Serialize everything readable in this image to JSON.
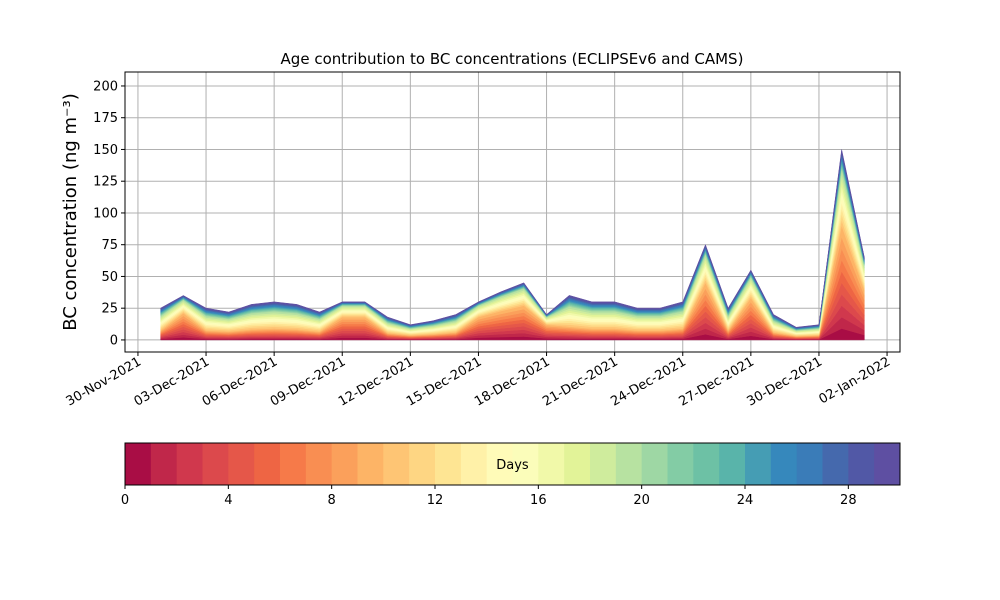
{
  "chart_data": {
    "type": "stacked_area",
    "title": "Age contribution to BC concentrations (ECLIPSEv6 and CAMS)",
    "y_label": "BC concentration (ng m⁻³)",
    "x": [
      "2021-12-01",
      "2021-12-02",
      "2021-12-03",
      "2021-12-04",
      "2021-12-05",
      "2021-12-06",
      "2021-12-07",
      "2021-12-08",
      "2021-12-09",
      "2021-12-10",
      "2021-12-11",
      "2021-12-12",
      "2021-12-13",
      "2021-12-14",
      "2021-12-15",
      "2021-12-16",
      "2021-12-17",
      "2021-12-18",
      "2021-12-19",
      "2021-12-20",
      "2021-12-21",
      "2021-12-22",
      "2021-12-23",
      "2021-12-24",
      "2021-12-25",
      "2021-12-26",
      "2021-12-27",
      "2021-12-28",
      "2021-12-29",
      "2021-12-30",
      "2021-12-31",
      "2022-01-01"
    ],
    "series": [
      {
        "values": [
          0.75,
          2.1,
          0.75,
          0.66,
          0.84,
          0.9,
          0.84,
          0.66,
          1.8,
          1.8,
          0.54,
          0.36,
          0.45,
          0.6,
          1.8,
          2.28,
          2.7,
          1.2,
          1.05,
          0.9,
          0.9,
          0.75,
          0.75,
          0.9,
          4.5,
          0.75,
          3.3,
          0.6,
          0.3,
          0.36,
          9,
          3.9
        ]
      },
      {
        "values": [
          0.75,
          2.1,
          0.75,
          0.66,
          0.84,
          0.9,
          0.84,
          0.66,
          1.8,
          1.8,
          0.54,
          0.36,
          0.45,
          0.6,
          1.8,
          2.28,
          2.7,
          1.2,
          1.05,
          0.9,
          0.9,
          0.75,
          0.75,
          0.9,
          4.5,
          0.75,
          3.3,
          0.6,
          0.3,
          0.36,
          9,
          3.9
        ]
      },
      {
        "values": [
          0.75,
          2.1,
          0.75,
          0.66,
          0.84,
          0.9,
          0.84,
          0.66,
          1.8,
          1.8,
          0.54,
          0.36,
          0.45,
          0.6,
          1.8,
          2.28,
          2.7,
          1.2,
          1.05,
          0.9,
          0.9,
          0.75,
          0.75,
          0.9,
          4.5,
          0.75,
          3.3,
          0.6,
          0.3,
          0.36,
          9,
          3.9
        ]
      },
      {
        "values": [
          0.75,
          2.1,
          0.75,
          0.66,
          0.84,
          0.9,
          0.84,
          0.66,
          1.8,
          1.8,
          0.54,
          0.36,
          0.45,
          0.6,
          1.8,
          2.28,
          2.7,
          1.2,
          1.05,
          0.9,
          0.9,
          0.75,
          0.75,
          0.9,
          4.5,
          0.75,
          3.3,
          0.6,
          0.3,
          0.36,
          9,
          3.9
        ]
      },
      {
        "values": [
          0.75,
          2.1,
          0.75,
          0.66,
          0.84,
          0.9,
          0.84,
          0.66,
          1.8,
          1.8,
          0.54,
          0.36,
          0.45,
          0.6,
          1.8,
          2.28,
          2.7,
          1.2,
          1.05,
          0.9,
          0.9,
          0.75,
          0.75,
          0.9,
          4.5,
          0.75,
          3.3,
          0.6,
          0.3,
          0.36,
          9,
          3.9
        ]
      },
      {
        "values": [
          0.75,
          2.1,
          0.75,
          0.66,
          0.84,
          0.9,
          0.84,
          0.66,
          1.8,
          1.8,
          0.54,
          0.36,
          0.45,
          0.6,
          1.8,
          2.28,
          2.7,
          1.2,
          1.05,
          0.9,
          0.9,
          0.75,
          0.75,
          0.9,
          4.5,
          0.75,
          3.3,
          0.6,
          0.3,
          0.36,
          9,
          3.9
        ]
      },
      {
        "values": [
          0.75,
          2.1,
          0.75,
          0.66,
          0.84,
          0.9,
          0.84,
          0.66,
          1.8,
          1.8,
          0.54,
          0.36,
          0.45,
          0.6,
          1.8,
          2.28,
          2.7,
          1.2,
          1.05,
          0.9,
          0.9,
          0.75,
          0.75,
          0.9,
          4.5,
          0.75,
          3.3,
          0.6,
          0.3,
          0.36,
          9,
          3.9
        ]
      },
      {
        "values": [
          0.75,
          2.1,
          0.75,
          0.66,
          0.84,
          0.9,
          0.84,
          0.66,
          1.8,
          1.8,
          0.54,
          0.36,
          0.45,
          0.6,
          1.8,
          2.28,
          2.7,
          1.2,
          1.05,
          0.9,
          0.9,
          0.75,
          0.75,
          0.9,
          4.5,
          0.75,
          3.3,
          0.6,
          0.3,
          0.36,
          9,
          3.9
        ]
      },
      {
        "values": [
          0.75,
          2.1,
          0.75,
          0.66,
          0.84,
          0.9,
          0.84,
          0.66,
          1.8,
          1.8,
          0.54,
          0.36,
          0.45,
          0.6,
          1.8,
          2.28,
          2.7,
          1.2,
          1.05,
          0.9,
          0.9,
          0.75,
          0.75,
          0.9,
          4.5,
          0.75,
          3.3,
          0.6,
          0.3,
          0.36,
          9,
          3.9
        ]
      },
      {
        "values": [
          0.75,
          2.1,
          0.75,
          0.66,
          0.84,
          0.9,
          0.84,
          0.66,
          1.8,
          1.8,
          0.54,
          0.36,
          0.45,
          0.6,
          1.8,
          2.28,
          2.7,
          1.2,
          1.05,
          0.9,
          0.9,
          0.75,
          0.75,
          0.9,
          4.5,
          0.75,
          3.3,
          0.6,
          0.3,
          0.36,
          9,
          3.9
        ]
      },
      {
        "values": [
          1.13,
          1.05,
          1.13,
          0.99,
          1.26,
          1.35,
          1.26,
          0.99,
          0.9,
          0.9,
          0.81,
          0.54,
          0.68,
          0.9,
          0.9,
          1.14,
          1.35,
          0.6,
          1.58,
          1.35,
          1.35,
          1.13,
          1.13,
          1.35,
          2.25,
          1.13,
          1.65,
          0.9,
          0.45,
          0.54,
          4.5,
          1.95
        ]
      },
      {
        "values": [
          1.13,
          1.05,
          1.13,
          0.99,
          1.26,
          1.35,
          1.26,
          0.99,
          0.9,
          0.9,
          0.81,
          0.54,
          0.68,
          0.9,
          0.9,
          1.14,
          1.35,
          0.6,
          1.58,
          1.35,
          1.35,
          1.13,
          1.13,
          1.35,
          2.25,
          1.13,
          1.65,
          0.9,
          0.45,
          0.54,
          4.5,
          1.95
        ]
      },
      {
        "values": [
          1.13,
          1.05,
          1.13,
          0.99,
          1.26,
          1.35,
          1.26,
          0.99,
          0.9,
          0.9,
          0.81,
          0.54,
          0.68,
          0.9,
          0.9,
          1.14,
          1.35,
          0.6,
          1.58,
          1.35,
          1.35,
          1.13,
          1.13,
          1.35,
          2.25,
          1.13,
          1.65,
          0.9,
          0.45,
          0.54,
          4.5,
          1.95
        ]
      },
      {
        "values": [
          1.13,
          1.05,
          1.13,
          0.99,
          1.26,
          1.35,
          1.26,
          0.99,
          0.9,
          0.9,
          0.81,
          0.54,
          0.68,
          0.9,
          0.9,
          1.14,
          1.35,
          0.6,
          1.58,
          1.35,
          1.35,
          1.13,
          1.13,
          1.35,
          2.25,
          1.13,
          1.65,
          0.9,
          0.45,
          0.54,
          4.5,
          1.95
        ]
      },
      {
        "values": [
          1.13,
          1.05,
          1.13,
          0.99,
          1.26,
          1.35,
          1.26,
          0.99,
          0.9,
          0.9,
          0.81,
          0.54,
          0.68,
          0.9,
          0.9,
          1.14,
          1.35,
          0.6,
          1.58,
          1.35,
          1.35,
          1.13,
          1.13,
          1.35,
          2.25,
          1.13,
          1.65,
          0.9,
          0.45,
          0.54,
          4.5,
          1.95
        ]
      },
      {
        "values": [
          1.13,
          1.05,
          1.13,
          0.99,
          1.26,
          1.35,
          1.26,
          0.99,
          0.9,
          0.9,
          0.81,
          0.54,
          0.68,
          0.9,
          0.9,
          1.14,
          1.35,
          0.6,
          1.58,
          1.35,
          1.35,
          1.13,
          1.13,
          1.35,
          2.25,
          1.13,
          1.65,
          0.9,
          0.45,
          0.54,
          4.5,
          1.95
        ]
      },
      {
        "values": [
          1.13,
          1.05,
          1.13,
          0.99,
          1.26,
          1.35,
          1.26,
          0.99,
          0.9,
          0.9,
          0.81,
          0.54,
          0.68,
          0.9,
          0.9,
          1.14,
          1.35,
          0.6,
          1.58,
          1.35,
          1.35,
          1.13,
          1.13,
          1.35,
          2.25,
          1.13,
          1.65,
          0.9,
          0.45,
          0.54,
          4.5,
          1.95
        ]
      },
      {
        "values": [
          1.13,
          1.05,
          1.13,
          0.99,
          1.26,
          1.35,
          1.26,
          0.99,
          0.9,
          0.9,
          0.81,
          0.54,
          0.68,
          0.9,
          0.9,
          1.14,
          1.35,
          0.6,
          1.58,
          1.35,
          1.35,
          1.13,
          1.13,
          1.35,
          2.25,
          1.13,
          1.65,
          0.9,
          0.45,
          0.54,
          4.5,
          1.95
        ]
      },
      {
        "values": [
          1.13,
          1.05,
          1.13,
          0.99,
          1.26,
          1.35,
          1.26,
          0.99,
          0.9,
          0.9,
          0.81,
          0.54,
          0.68,
          0.9,
          0.9,
          1.14,
          1.35,
          0.6,
          1.58,
          1.35,
          1.35,
          1.13,
          1.13,
          1.35,
          2.25,
          1.13,
          1.65,
          0.9,
          0.45,
          0.54,
          4.5,
          1.95
        ]
      },
      {
        "values": [
          1.13,
          1.05,
          1.13,
          0.99,
          1.26,
          1.35,
          1.26,
          0.99,
          0.9,
          0.9,
          0.81,
          0.54,
          0.68,
          0.9,
          0.9,
          1.14,
          1.35,
          0.6,
          1.58,
          1.35,
          1.35,
          1.13,
          1.13,
          1.35,
          2.25,
          1.13,
          1.65,
          0.9,
          0.45,
          0.54,
          4.5,
          1.95
        ]
      },
      {
        "values": [
          0.63,
          0.35,
          0.63,
          0.55,
          0.7,
          0.75,
          0.7,
          0.55,
          0.3,
          0.3,
          0.45,
          0.3,
          0.38,
          0.5,
          0.3,
          0.38,
          0.45,
          0.2,
          0.88,
          0.75,
          0.75,
          0.63,
          0.63,
          0.75,
          0.75,
          0.63,
          0.55,
          0.5,
          0.25,
          0.3,
          1.5,
          0.65
        ]
      },
      {
        "values": [
          0.63,
          0.35,
          0.63,
          0.55,
          0.7,
          0.75,
          0.7,
          0.55,
          0.3,
          0.3,
          0.45,
          0.3,
          0.38,
          0.5,
          0.3,
          0.38,
          0.45,
          0.2,
          0.88,
          0.75,
          0.75,
          0.63,
          0.63,
          0.75,
          0.75,
          0.63,
          0.55,
          0.5,
          0.25,
          0.3,
          1.5,
          0.65
        ]
      },
      {
        "values": [
          0.63,
          0.35,
          0.63,
          0.55,
          0.7,
          0.75,
          0.7,
          0.55,
          0.3,
          0.3,
          0.45,
          0.3,
          0.38,
          0.5,
          0.3,
          0.38,
          0.45,
          0.2,
          0.88,
          0.75,
          0.75,
          0.63,
          0.63,
          0.75,
          0.75,
          0.63,
          0.55,
          0.5,
          0.25,
          0.3,
          1.5,
          0.65
        ]
      },
      {
        "values": [
          0.63,
          0.35,
          0.63,
          0.55,
          0.7,
          0.75,
          0.7,
          0.55,
          0.3,
          0.3,
          0.45,
          0.3,
          0.38,
          0.5,
          0.3,
          0.38,
          0.45,
          0.2,
          0.88,
          0.75,
          0.75,
          0.63,
          0.63,
          0.75,
          0.75,
          0.63,
          0.55,
          0.5,
          0.25,
          0.3,
          1.5,
          0.65
        ]
      },
      {
        "values": [
          0.63,
          0.35,
          0.63,
          0.55,
          0.7,
          0.75,
          0.7,
          0.55,
          0.3,
          0.3,
          0.45,
          0.3,
          0.38,
          0.5,
          0.3,
          0.38,
          0.45,
          0.2,
          0.88,
          0.75,
          0.75,
          0.63,
          0.63,
          0.75,
          0.75,
          0.63,
          0.55,
          0.5,
          0.25,
          0.3,
          1.5,
          0.65
        ]
      },
      {
        "values": [
          0.63,
          0.35,
          0.63,
          0.55,
          0.7,
          0.75,
          0.7,
          0.55,
          0.3,
          0.3,
          0.45,
          0.3,
          0.38,
          0.5,
          0.3,
          0.38,
          0.45,
          0.2,
          0.88,
          0.75,
          0.75,
          0.63,
          0.63,
          0.75,
          0.75,
          0.63,
          0.55,
          0.5,
          0.25,
          0.3,
          1.5,
          0.65
        ]
      },
      {
        "values": [
          0.63,
          0.35,
          0.63,
          0.55,
          0.7,
          0.75,
          0.7,
          0.55,
          0.3,
          0.3,
          0.45,
          0.3,
          0.38,
          0.5,
          0.3,
          0.38,
          0.45,
          0.2,
          0.88,
          0.75,
          0.75,
          0.63,
          0.63,
          0.75,
          0.75,
          0.63,
          0.55,
          0.5,
          0.25,
          0.3,
          1.5,
          0.65
        ]
      },
      {
        "values": [
          0.63,
          0.35,
          0.63,
          0.55,
          0.7,
          0.75,
          0.7,
          0.55,
          0.3,
          0.3,
          0.45,
          0.3,
          0.38,
          0.5,
          0.3,
          0.38,
          0.45,
          0.2,
          0.88,
          0.75,
          0.75,
          0.63,
          0.63,
          0.75,
          0.75,
          0.63,
          0.55,
          0.5,
          0.25,
          0.3,
          1.5,
          0.65
        ]
      },
      {
        "values": [
          0.63,
          0.35,
          0.63,
          0.55,
          0.7,
          0.75,
          0.7,
          0.55,
          0.3,
          0.3,
          0.45,
          0.3,
          0.38,
          0.5,
          0.3,
          0.38,
          0.45,
          0.2,
          0.88,
          0.75,
          0.75,
          0.63,
          0.63,
          0.75,
          0.75,
          0.63,
          0.55,
          0.5,
          0.25,
          0.3,
          1.5,
          0.65
        ]
      },
      {
        "values": [
          0.63,
          0.35,
          0.63,
          0.55,
          0.7,
          0.75,
          0.7,
          0.55,
          0.3,
          0.3,
          0.45,
          0.3,
          0.38,
          0.5,
          0.3,
          0.38,
          0.45,
          0.2,
          0.88,
          0.75,
          0.75,
          0.63,
          0.63,
          0.75,
          0.75,
          0.63,
          0.55,
          0.5,
          0.25,
          0.3,
          1.5,
          0.65
        ]
      }
    ],
    "xlim": [
      "2021-11-29T10:19",
      "2022-01-02T13:41"
    ],
    "xticks": [
      {
        "value": "2021-11-30",
        "label": "30-Nov-2021"
      },
      {
        "value": "2021-12-03",
        "label": "03-Dec-2021"
      },
      {
        "value": "2021-12-06",
        "label": "06-Dec-2021"
      },
      {
        "value": "2021-12-09",
        "label": "09-Dec-2021"
      },
      {
        "value": "2021-12-12",
        "label": "12-Dec-2021"
      },
      {
        "value": "2021-12-15",
        "label": "15-Dec-2021"
      },
      {
        "value": "2021-12-18",
        "label": "18-Dec-2021"
      },
      {
        "value": "2021-12-21",
        "label": "21-Dec-2021"
      },
      {
        "value": "2021-12-24",
        "label": "24-Dec-2021"
      },
      {
        "value": "2021-12-27",
        "label": "27-Dec-2021"
      },
      {
        "value": "2021-12-30",
        "label": "30-Dec-2021"
      },
      {
        "value": "2022-01-02",
        "label": "02-Jan-2022"
      }
    ],
    "ylim": [
      -9.5,
      211
    ],
    "yticks": [
      0,
      25,
      50,
      75,
      100,
      125,
      150,
      175,
      200
    ],
    "grid": true,
    "colorbar": {
      "label": "Days",
      "lim": [
        0,
        30
      ],
      "ticks": [
        0,
        4,
        8,
        12,
        16,
        20,
        24,
        28
      ],
      "colors": [
        "#a90d45",
        "#c0274a",
        "#d0384d",
        "#dc494c",
        "#e55749",
        "#ee6544",
        "#f67a49",
        "#f98e52",
        "#fba05b",
        "#fdb466",
        "#fec574",
        "#fed683",
        "#fee593",
        "#fff1a8",
        "#fffbb8",
        "#fbfdba",
        "#f1f9a9",
        "#e2f398",
        "#cfec9d",
        "#b7e2a1",
        "#9ed7a4",
        "#83cca5",
        "#6dc1a5",
        "#59b4aa",
        "#459db4",
        "#3688bc",
        "#3a7cb8",
        "#4569ad",
        "#5158a6",
        "#5e4fa2"
      ]
    }
  }
}
